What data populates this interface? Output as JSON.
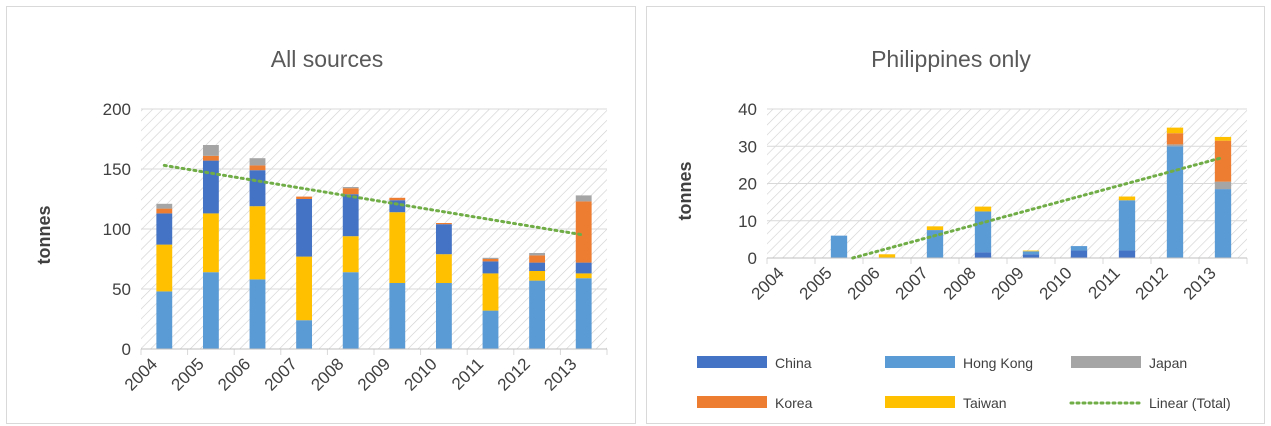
{
  "chart_data": [
    {
      "type": "bar",
      "stacked": true,
      "title": "All sources",
      "xlabel": "",
      "ylabel": "tonnes",
      "ylim": [
        0,
        200
      ],
      "yticks": [
        0,
        50,
        100,
        150,
        200
      ],
      "categories": [
        "2004",
        "2005",
        "2006",
        "2007",
        "2008",
        "2009",
        "2010",
        "2011",
        "2012",
        "2013"
      ],
      "series": [
        {
          "name": "Hong Kong",
          "color": "#5b9bd5",
          "values": [
            48,
            64,
            58,
            24,
            64,
            55,
            55,
            32,
            57,
            59
          ]
        },
        {
          "name": "Taiwan",
          "color": "#ffc000",
          "values": [
            39,
            49,
            61,
            53,
            30,
            59,
            24,
            31,
            8,
            4
          ]
        },
        {
          "name": "China",
          "color": "#4472c4",
          "values": [
            26,
            44,
            30,
            48,
            35,
            10,
            25,
            10,
            7,
            9
          ]
        },
        {
          "name": "Korea",
          "color": "#ed7d31",
          "values": [
            4,
            4,
            4,
            2,
            5,
            2,
            1,
            2,
            6,
            51
          ]
        },
        {
          "name": "Japan",
          "color": "#a5a5a5",
          "values": [
            4,
            9,
            6,
            0,
            1,
            0,
            0,
            1,
            2,
            5
          ]
        }
      ],
      "trendline": {
        "name": "Linear (Total)",
        "color": "#70ad47",
        "start": 153,
        "end": 95
      },
      "hatched_background": true,
      "grid": true
    },
    {
      "type": "bar",
      "stacked": true,
      "title": "Philippines only",
      "xlabel": "",
      "ylabel": "tonnes",
      "ylim": [
        0,
        40
      ],
      "yticks": [
        0,
        10,
        20,
        30,
        40
      ],
      "categories": [
        "2004",
        "2005",
        "2006",
        "2007",
        "2008",
        "2009",
        "2010",
        "2011",
        "2012",
        "2013"
      ],
      "series": [
        {
          "name": "China",
          "color": "#4472c4",
          "values": [
            0,
            0,
            0,
            0,
            1.5,
            1,
            2,
            2,
            0,
            0
          ]
        },
        {
          "name": "Hong Kong",
          "color": "#5b9bd5",
          "values": [
            0,
            6,
            0,
            7.5,
            11,
            0.8,
            1.2,
            13.5,
            30,
            18.5
          ]
        },
        {
          "name": "Japan",
          "color": "#a5a5a5",
          "values": [
            0,
            0,
            0,
            0,
            0,
            0,
            0,
            0,
            0.5,
            2
          ]
        },
        {
          "name": "Korea",
          "color": "#ed7d31",
          "values": [
            0,
            0,
            0,
            0,
            0,
            0,
            0,
            0,
            3,
            11
          ]
        },
        {
          "name": "Taiwan",
          "color": "#ffc000",
          "values": [
            0,
            0,
            1,
            1,
            1.3,
            0.2,
            0,
            1,
            1.5,
            1
          ]
        }
      ],
      "trendline": {
        "name": "Linear (Total)",
        "color": "#70ad47",
        "start": -4.5,
        "end": 27
      },
      "hatched_background": true,
      "grid": true,
      "legend": {
        "placement": "bottom",
        "items": [
          {
            "name": "China",
            "kind": "box",
            "color": "#4472c4"
          },
          {
            "name": "Hong Kong",
            "kind": "box",
            "color": "#5b9bd5"
          },
          {
            "name": "Japan",
            "kind": "box",
            "color": "#a5a5a5"
          },
          {
            "name": "Korea",
            "kind": "box",
            "color": "#ed7d31"
          },
          {
            "name": "Taiwan",
            "kind": "box",
            "color": "#ffc000"
          },
          {
            "name": "Linear (Total)",
            "kind": "line",
            "color": "#70ad47"
          }
        ]
      }
    }
  ]
}
